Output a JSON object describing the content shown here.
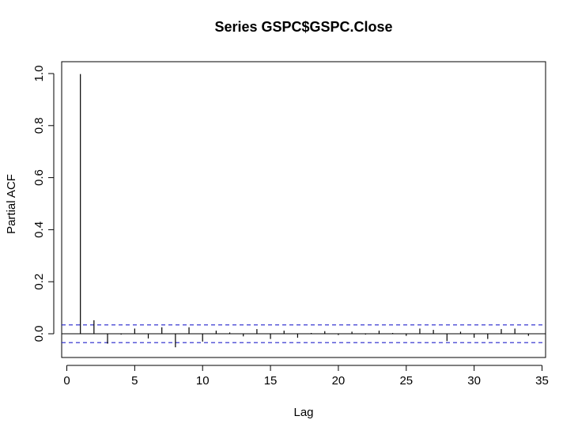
{
  "chart_data": {
    "type": "bar",
    "title": "Series  GSPC$GSPC.Close",
    "xlabel": "Lag",
    "ylabel": "Partial ACF",
    "xlim": [
      0,
      35
    ],
    "ylim": [
      -0.06,
      1.02
    ],
    "x_ticks": [
      "0",
      "5",
      "10",
      "15",
      "20",
      "25",
      "30",
      "35"
    ],
    "y_ticks": [
      "0.0",
      "0.2",
      "0.4",
      "0.6",
      "0.8",
      "1.0"
    ],
    "lags": [
      1,
      2,
      3,
      4,
      5,
      6,
      7,
      8,
      9,
      10,
      11,
      12,
      13,
      14,
      15,
      16,
      17,
      18,
      19,
      20,
      21,
      22,
      23,
      24,
      25,
      26,
      27,
      28,
      29,
      30,
      31,
      32,
      33,
      34
    ],
    "values": [
      0.998,
      0.052,
      -0.038,
      -0.003,
      0.02,
      -0.018,
      0.025,
      -0.052,
      0.025,
      -0.03,
      0.012,
      0.005,
      -0.01,
      0.018,
      -0.02,
      0.012,
      -0.015,
      0.003,
      0.01,
      -0.005,
      0.008,
      -0.003,
      0.012,
      0.003,
      -0.008,
      0.02,
      0.015,
      -0.028,
      0.008,
      -0.015,
      -0.02,
      0.018,
      0.02,
      -0.008
    ],
    "conf_limit": 0.034,
    "grid": false,
    "colors": {
      "conf_line": "#2222cc",
      "bars": "#000000",
      "zero_line": "#000000"
    }
  }
}
